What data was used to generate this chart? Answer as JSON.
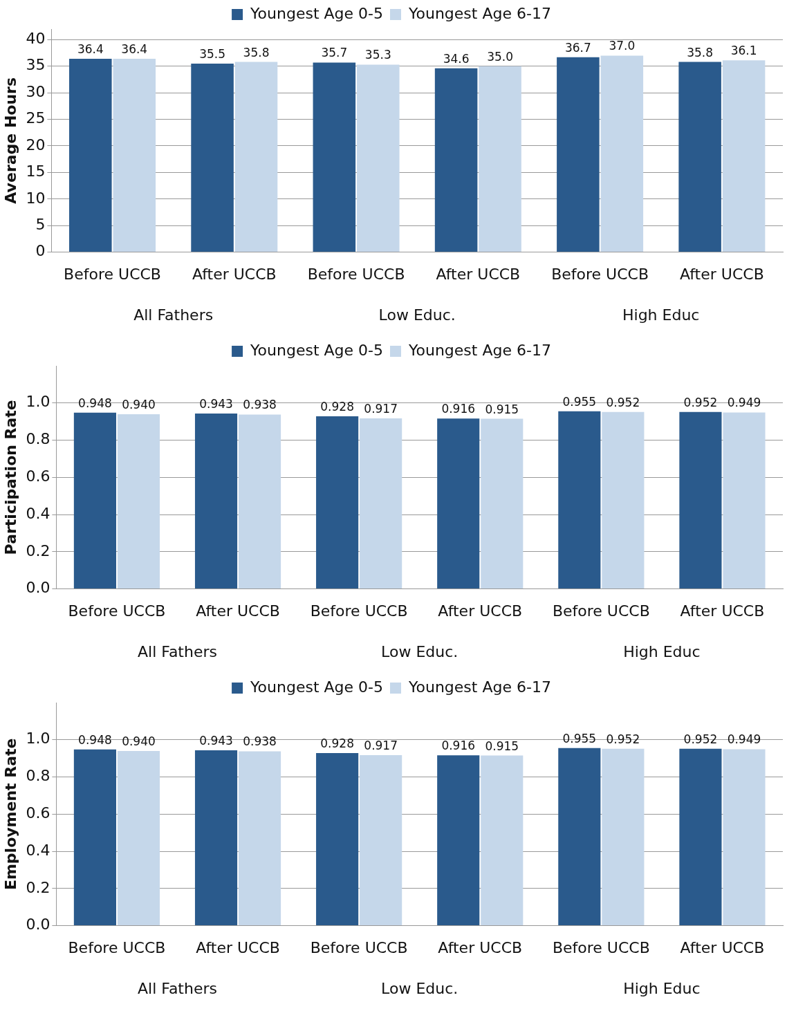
{
  "chart_data": [
    {
      "type": "bar",
      "ylabel": "Average Hours",
      "categories": [
        "Before UCCB",
        "After UCCB",
        "Before UCCB",
        "After UCCB",
        "Before UCCB",
        "After UCCB"
      ],
      "annotations": [
        "All Fathers",
        "Low Educ.",
        "High Educ"
      ],
      "ylim": [
        0,
        42
      ],
      "yticks": [
        0,
        5,
        10,
        15,
        20,
        25,
        30,
        35,
        40
      ],
      "grid": "y",
      "legend": "top",
      "series": [
        {
          "name": "Youngest Age 0-5",
          "color": "#2a5a8c",
          "values": [
            36.4,
            35.5,
            35.7,
            34.6,
            36.7,
            35.8
          ],
          "value_labels": [
            "36.4",
            "35.5",
            "35.7",
            "34.6",
            "36.7",
            "35.8"
          ]
        },
        {
          "name": "Youngest Age 6-17",
          "color": "#c5d7ea",
          "values": [
            36.4,
            35.8,
            35.3,
            35.0,
            37.0,
            36.1
          ],
          "value_labels": [
            "36.4",
            "35.8",
            "35.3",
            "35.0",
            "37.0",
            "36.1"
          ]
        }
      ]
    },
    {
      "type": "bar",
      "ylabel": "Participation Rate",
      "categories": [
        "Before UCCB",
        "After UCCB",
        "Before UCCB",
        "After UCCB",
        "Before UCCB",
        "After UCCB"
      ],
      "annotations": [
        "All Fathers",
        "Low Educ.",
        "High Educ"
      ],
      "ylim": [
        0,
        1.2
      ],
      "yticks": [
        {
          "value": 0,
          "label": "0.0"
        },
        {
          "value": 0.2,
          "label": "0.2"
        },
        {
          "value": 0.4,
          "label": "0.4"
        },
        {
          "value": 0.6,
          "label": "0.6"
        },
        {
          "value": 0.8,
          "label": "0.8"
        },
        {
          "value": 1,
          "label": "1.0"
        }
      ],
      "grid": "y",
      "legend": "top",
      "series": [
        {
          "name": "Youngest Age 0-5",
          "color": "#2a5a8c",
          "values": [
            0.948,
            0.943,
            0.928,
            0.916,
            0.955,
            0.952
          ],
          "value_labels": [
            "0.948",
            "0.943",
            "0.928",
            "0.916",
            "0.955",
            "0.952"
          ]
        },
        {
          "name": "Youngest Age 6-17",
          "color": "#c5d7ea",
          "values": [
            0.94,
            0.938,
            0.917,
            0.915,
            0.952,
            0.949
          ],
          "value_labels": [
            "0.940",
            "0.938",
            "0.917",
            "0.915",
            "0.952",
            "0.949"
          ]
        }
      ]
    },
    {
      "type": "bar",
      "ylabel": "Employment Rate",
      "categories": [
        "Before UCCB",
        "After UCCB",
        "Before UCCB",
        "After UCCB",
        "Before UCCB",
        "After UCCB"
      ],
      "annotations": [
        "All Fathers",
        "Low Educ.",
        "High Educ"
      ],
      "ylim": [
        0,
        1.2
      ],
      "yticks": [
        {
          "value": 0,
          "label": "0.0"
        },
        {
          "value": 0.2,
          "label": "0.2"
        },
        {
          "value": 0.4,
          "label": "0.4"
        },
        {
          "value": 0.6,
          "label": "0.6"
        },
        {
          "value": 0.8,
          "label": "0.8"
        },
        {
          "value": 1,
          "label": "1.0"
        }
      ],
      "grid": "y",
      "legend": "top",
      "series": [
        {
          "name": "Youngest Age 0-5",
          "color": "#2a5a8c",
          "values": [
            0.948,
            0.943,
            0.928,
            0.916,
            0.955,
            0.952
          ],
          "value_labels": [
            "0.948",
            "0.943",
            "0.928",
            "0.916",
            "0.955",
            "0.952"
          ]
        },
        {
          "name": "Youngest Age 6-17",
          "color": "#c5d7ea",
          "values": [
            0.94,
            0.938,
            0.917,
            0.915,
            0.952,
            0.949
          ],
          "value_labels": [
            "0.940",
            "0.938",
            "0.917",
            "0.915",
            "0.952",
            "0.949"
          ]
        }
      ]
    }
  ]
}
